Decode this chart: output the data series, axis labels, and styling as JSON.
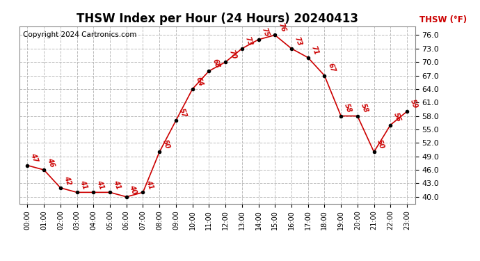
{
  "title": "THSW Index per Hour (24 Hours) 20240413",
  "copyright": "Copyright 2024 Cartronics.com",
  "legend_label": "THSW (°F)",
  "hours": [
    "00:00",
    "01:00",
    "02:00",
    "03:00",
    "04:00",
    "05:00",
    "06:00",
    "07:00",
    "08:00",
    "09:00",
    "10:00",
    "11:00",
    "12:00",
    "13:00",
    "14:00",
    "15:00",
    "16:00",
    "17:00",
    "18:00",
    "19:00",
    "20:00",
    "21:00",
    "22:00",
    "23:00"
  ],
  "values": [
    47,
    46,
    42,
    41,
    41,
    41,
    40,
    41,
    50,
    57,
    64,
    68,
    70,
    73,
    75,
    76,
    73,
    71,
    67,
    58,
    58,
    50,
    56,
    59
  ],
  "ylim": [
    38.5,
    78.0
  ],
  "yticks": [
    40.0,
    43.0,
    46.0,
    49.0,
    52.0,
    55.0,
    58.0,
    61.0,
    64.0,
    67.0,
    70.0,
    73.0,
    76.0
  ],
  "line_color": "#cc0000",
  "marker_color": "#000000",
  "grid_color": "#bbbbbb",
  "bg_color": "#ffffff",
  "title_fontsize": 12,
  "copyright_fontsize": 7.5,
  "legend_color": "#cc0000",
  "label_fontsize": 7
}
